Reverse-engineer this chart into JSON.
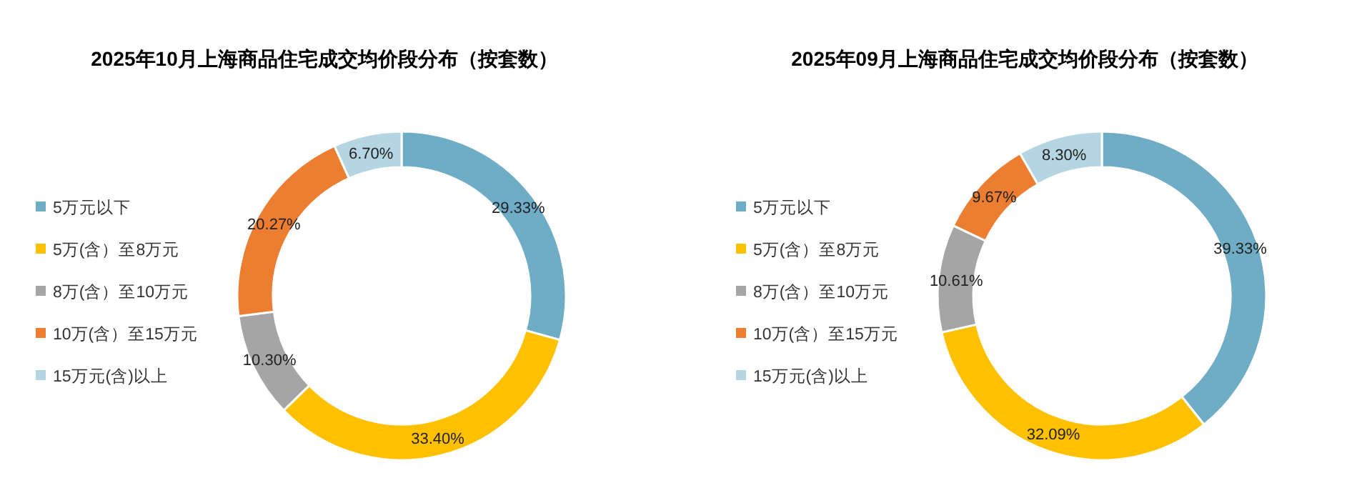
{
  "chart_data": [
    {
      "type": "donut",
      "title": "2025年10月上海商品住宅成交均价段分布（按套数）",
      "categories": [
        "5万元以下",
        "5万(含）至8万元",
        "8万(含）至10万元",
        "10万(含）至15万元",
        "15万元(含)以上"
      ],
      "values": [
        29.33,
        33.4,
        10.3,
        20.27,
        6.7
      ],
      "value_labels": [
        "29.33%",
        "33.40%",
        "10.30%",
        "20.27%",
        "6.70%"
      ],
      "colors": [
        "#6facc6",
        "#ffc000",
        "#a5a5a5",
        "#ed7d31",
        "#b4d5e1"
      ],
      "legend": "left"
    },
    {
      "type": "donut",
      "title": "2025年09月上海商品住宅成交均价段分布（按套数）",
      "categories": [
        "5万元以下",
        "5万(含）至8万元",
        "8万(含）至10万元",
        "10万(含）至15万元",
        "15万元(含)以上"
      ],
      "values": [
        39.33,
        32.09,
        10.61,
        9.67,
        8.3
      ],
      "value_labels": [
        "39.33%",
        "32.09%",
        "10.61%",
        "9.67%",
        "8.30%"
      ],
      "colors": [
        "#6facc6",
        "#ffc000",
        "#a5a5a5",
        "#ed7d31",
        "#b4d5e1"
      ],
      "legend": "left"
    }
  ]
}
